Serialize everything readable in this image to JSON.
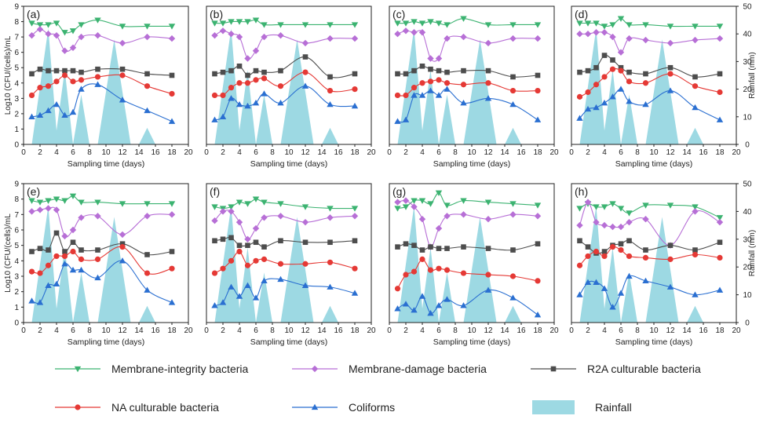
{
  "figure": {
    "y_left_label": "Log10 (CFU/(cells)/mL",
    "y_right_label": "Rainfall (mm)",
    "x_label": "Sampling time (days)"
  },
  "legend": [
    {
      "name": "Membrane-integrity bacteria",
      "color": "#3cb371",
      "marker": "triangle-down"
    },
    {
      "name": "Membrane-damage bacteria",
      "color": "#b76fd6",
      "marker": "diamond"
    },
    {
      "name": "R2A culturable bacteria",
      "color": "#4d4d4d",
      "marker": "square"
    },
    {
      "name": "NA culturable bacteria",
      "color": "#e53935",
      "marker": "circle"
    },
    {
      "name": "Coliforms",
      "color": "#2a6fd1",
      "marker": "triangle-up"
    },
    {
      "name": "Rainfall",
      "color": "#9dd9e3",
      "marker": "area"
    }
  ],
  "chart_data": {
    "type": "line",
    "x_ticks": [
      0,
      2,
      4,
      6,
      8,
      10,
      12,
      14,
      16,
      18,
      20
    ],
    "y_left_ticks": [
      0,
      1,
      2,
      3,
      4,
      5,
      6,
      7,
      8,
      9
    ],
    "y_right_ticks": [
      0,
      10,
      20,
      30,
      40,
      50
    ],
    "xlim": [
      0,
      20
    ],
    "ylim_left": [
      0,
      9
    ],
    "ylim_right": [
      0,
      50
    ],
    "rainfall": {
      "x": [
        1,
        3,
        4,
        5,
        6,
        7,
        8,
        9,
        11,
        13,
        14,
        15,
        16
      ],
      "y": [
        0,
        42,
        5,
        27,
        0,
        18,
        0,
        0,
        38,
        0,
        0,
        6,
        0
      ]
    },
    "x": [
      1,
      2,
      3,
      4,
      5,
      6,
      7,
      9,
      12,
      15,
      18
    ],
    "panels": [
      {
        "label": "(a)",
        "series": {
          "integrity": [
            7.9,
            7.8,
            7.8,
            7.9,
            7.3,
            7.4,
            7.8,
            8.1,
            7.7,
            7.7,
            7.7
          ],
          "damage": [
            7.1,
            7.5,
            7.2,
            7.1,
            6.1,
            6.3,
            7.0,
            7.1,
            6.6,
            7.0,
            6.9
          ],
          "r2a": [
            4.6,
            4.9,
            4.8,
            4.8,
            4.8,
            4.8,
            4.7,
            4.9,
            4.9,
            4.6,
            4.5
          ],
          "na": [
            3.2,
            3.7,
            3.8,
            4.1,
            4.5,
            4.1,
            4.2,
            4.4,
            4.5,
            3.8,
            3.3
          ],
          "coliforms": [
            1.8,
            1.9,
            2.2,
            2.6,
            1.9,
            2.1,
            3.6,
            3.9,
            2.9,
            2.2,
            1.5
          ]
        }
      },
      {
        "label": "(b)",
        "series": {
          "integrity": [
            7.9,
            7.9,
            8.0,
            8.0,
            8.0,
            8.1,
            7.8,
            7.8,
            7.8,
            7.8,
            7.8
          ],
          "damage": [
            7.1,
            7.4,
            7.2,
            7.0,
            5.6,
            6.1,
            7.0,
            7.1,
            6.6,
            6.9,
            6.9
          ],
          "r2a": [
            4.6,
            4.7,
            4.8,
            5.1,
            4.5,
            4.8,
            4.7,
            4.8,
            5.7,
            4.4,
            4.6
          ],
          "na": [
            3.2,
            3.2,
            3.7,
            4.0,
            4.0,
            4.2,
            4.3,
            3.8,
            4.7,
            3.5,
            3.6
          ],
          "coliforms": [
            1.6,
            1.8,
            3.0,
            2.6,
            2.5,
            2.7,
            3.3,
            2.7,
            3.8,
            2.6,
            2.5
          ]
        }
      },
      {
        "label": "(c)",
        "series": {
          "integrity": [
            7.9,
            7.9,
            8.0,
            7.9,
            8.0,
            7.9,
            7.8,
            8.2,
            7.8,
            7.8,
            7.8
          ],
          "damage": [
            7.2,
            7.4,
            7.3,
            7.3,
            5.6,
            5.6,
            6.9,
            7.0,
            6.6,
            6.9,
            6.9
          ],
          "r2a": [
            4.6,
            4.6,
            4.8,
            5.1,
            4.9,
            4.8,
            4.7,
            4.8,
            4.8,
            4.4,
            4.5
          ],
          "na": [
            3.2,
            3.2,
            3.7,
            4.0,
            4.1,
            4.2,
            4.0,
            3.9,
            4.0,
            3.5,
            3.5
          ],
          "coliforms": [
            1.5,
            1.6,
            3.2,
            3.2,
            3.5,
            3.2,
            3.6,
            2.7,
            3.0,
            2.6,
            1.6
          ]
        }
      },
      {
        "label": "(d)",
        "series": {
          "integrity": [
            7.9,
            7.9,
            7.9,
            7.7,
            7.8,
            8.2,
            7.8,
            7.8,
            7.7,
            7.7,
            7.7
          ],
          "damage": [
            7.2,
            7.2,
            7.3,
            7.3,
            7.0,
            6.0,
            6.9,
            6.8,
            6.6,
            6.8,
            6.9
          ],
          "r2a": [
            4.7,
            4.8,
            5.0,
            5.8,
            5.5,
            5.0,
            4.7,
            4.6,
            5.0,
            4.4,
            4.6
          ],
          "na": [
            3.1,
            3.4,
            3.9,
            4.4,
            4.9,
            4.8,
            4.1,
            4.0,
            4.6,
            3.8,
            3.4
          ],
          "coliforms": [
            1.7,
            2.3,
            2.4,
            2.7,
            3.1,
            3.6,
            2.8,
            2.6,
            3.5,
            2.4,
            1.6
          ]
        }
      },
      {
        "label": "(e)",
        "series": {
          "integrity": [
            7.9,
            7.8,
            7.9,
            8.0,
            7.9,
            8.2,
            7.8,
            7.8,
            7.7,
            7.7,
            7.7
          ],
          "damage": [
            7.2,
            7.3,
            7.4,
            7.3,
            5.6,
            6.0,
            6.8,
            6.9,
            5.7,
            6.9,
            7.0
          ],
          "r2a": [
            4.6,
            4.8,
            4.7,
            5.8,
            4.6,
            5.2,
            4.7,
            4.7,
            5.1,
            4.4,
            4.6
          ],
          "na": [
            3.3,
            3.2,
            3.7,
            4.3,
            4.3,
            4.6,
            4.1,
            4.1,
            4.9,
            3.2,
            3.5
          ],
          "coliforms": [
            1.4,
            1.3,
            2.4,
            2.5,
            3.8,
            3.4,
            3.4,
            2.9,
            4.0,
            2.1,
            1.3
          ]
        }
      },
      {
        "label": "(f)",
        "series": {
          "integrity": [
            7.5,
            7.4,
            7.5,
            7.8,
            7.7,
            8.0,
            7.8,
            7.7,
            7.5,
            7.4,
            7.4
          ],
          "damage": [
            6.6,
            7.2,
            7.2,
            6.5,
            5.4,
            6.1,
            6.8,
            6.9,
            6.5,
            6.8,
            6.9
          ],
          "r2a": [
            5.3,
            5.4,
            5.5,
            5.0,
            5.0,
            5.2,
            4.9,
            5.3,
            5.2,
            5.2,
            5.3
          ],
          "na": [
            3.2,
            3.5,
            4.0,
            4.6,
            3.7,
            4.0,
            4.1,
            3.8,
            3.8,
            3.9,
            3.5
          ],
          "coliforms": [
            1.1,
            1.3,
            2.3,
            1.7,
            2.4,
            1.6,
            2.7,
            2.8,
            2.4,
            2.3,
            1.9
          ]
        }
      },
      {
        "label": "(g)",
        "series": {
          "integrity": [
            7.4,
            7.5,
            7.9,
            7.9,
            7.7,
            8.4,
            7.6,
            7.9,
            7.8,
            7.7,
            7.6
          ],
          "damage": [
            7.8,
            7.9,
            7.5,
            6.7,
            4.9,
            6.1,
            6.9,
            7.0,
            6.7,
            7.0,
            6.9
          ],
          "r2a": [
            4.9,
            5.1,
            5.0,
            4.7,
            4.9,
            4.8,
            4.8,
            4.9,
            4.8,
            4.7,
            5.1
          ],
          "na": [
            2.2,
            3.1,
            3.3,
            4.1,
            3.4,
            3.5,
            3.4,
            3.2,
            3.1,
            3.0,
            2.7
          ],
          "coliforms": [
            0.9,
            1.2,
            0.8,
            1.7,
            0.6,
            1.1,
            1.5,
            1.1,
            2.1,
            1.6,
            0.5
          ]
        }
      },
      {
        "label": "(h)",
        "series": {
          "integrity": [
            7.4,
            7.7,
            7.5,
            7.5,
            7.7,
            7.4,
            7.1,
            7.6,
            7.6,
            7.5,
            6.8
          ],
          "damage": [
            6.3,
            7.8,
            6.5,
            6.3,
            6.2,
            6.2,
            6.5,
            6.7,
            5.0,
            7.2,
            6.5
          ],
          "r2a": [
            5.3,
            4.9,
            4.5,
            4.6,
            5.0,
            5.1,
            5.3,
            4.7,
            5.0,
            4.7,
            5.2
          ],
          "na": [
            3.7,
            4.3,
            4.6,
            4.3,
            4.9,
            4.7,
            4.3,
            4.2,
            4.1,
            4.4,
            4.2
          ],
          "coliforms": [
            1.8,
            2.6,
            2.6,
            2.2,
            1.0,
            1.9,
            3.0,
            2.7,
            2.3,
            1.8,
            2.1
          ]
        }
      }
    ]
  }
}
